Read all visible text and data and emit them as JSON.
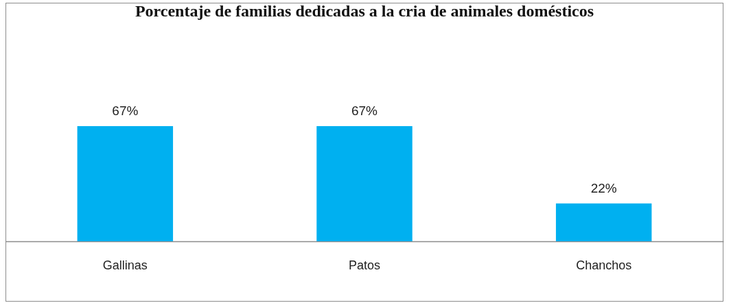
{
  "chart_data": {
    "type": "bar",
    "title": "Porcentaje de familias dedicadas a la cria de animales domésticos",
    "categories": [
      "Gallinas",
      "Patos",
      "Chanchos"
    ],
    "values": [
      67,
      67,
      22
    ],
    "value_labels": [
      "67%",
      "67%",
      "22%"
    ],
    "color": "#00b0f0"
  }
}
